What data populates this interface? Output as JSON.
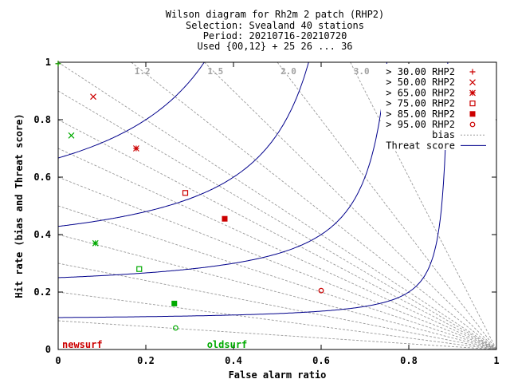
{
  "title_lines": [
    "Wilson diagram  for Rh2m 2 patch (RHP2)",
    "Selection: Svealand     40 stations",
    "Period: 20210716-20210720",
    "Used {00,12} + 25 26 ... 36"
  ],
  "chart_data": {
    "type": "scatter",
    "xlabel": "False alarm ratio",
    "ylabel": "Hit rate (bias and Threat score)",
    "xlim": [
      0,
      1
    ],
    "ylim": [
      0,
      1
    ],
    "x_ticks": [
      "0",
      "0.2",
      "0.4",
      "0.6",
      "0.8",
      "1"
    ],
    "y_ticks": [
      "0",
      "0.2",
      "0.4",
      "0.6",
      "0.8",
      "1"
    ],
    "bias_lines": [
      0.1,
      0.2,
      0.3,
      0.4,
      0.5,
      0.6,
      0.7,
      0.8,
      0.9,
      1.0,
      1.2,
      1.5,
      2.0,
      3.0
    ],
    "bias_labels": [
      "1.2",
      "1.5",
      "2.0",
      "3.0"
    ],
    "threat_score_lines": [
      0.1,
      0.2,
      0.3,
      0.4,
      0.5,
      0.6,
      0.7,
      0.8,
      0.9
    ],
    "legend": [
      {
        "label": "> 30.00 RHP2",
        "marker": "plus"
      },
      {
        "label": "> 50.00 RHP2",
        "marker": "cross"
      },
      {
        "label": "> 65.00 RHP2",
        "marker": "star"
      },
      {
        "label": "> 75.00 RHP2",
        "marker": "square-open"
      },
      {
        "label": "> 85.00 RHP2",
        "marker": "square-filled"
      },
      {
        "label": "> 95.00 RHP2",
        "marker": "circle-open"
      },
      {
        "label": "bias",
        "marker": "dotted-line"
      },
      {
        "label": "Threat score",
        "marker": "line"
      }
    ],
    "series": [
      {
        "name": "newsurf",
        "color": "#cc0000",
        "points": [
          {
            "threshold": "> 30.00 RHP2",
            "marker": "plus",
            "x": 0.0,
            "y": 0.995
          },
          {
            "threshold": "> 50.00 RHP2",
            "marker": "cross",
            "x": 0.08,
            "y": 0.88
          },
          {
            "threshold": "> 65.00 RHP2",
            "marker": "star",
            "x": 0.178,
            "y": 0.7
          },
          {
            "threshold": "> 75.00 RHP2",
            "marker": "square-open",
            "x": 0.29,
            "y": 0.545
          },
          {
            "threshold": "> 85.00 RHP2",
            "marker": "square-filled",
            "x": 0.38,
            "y": 0.455
          },
          {
            "threshold": "> 95.00 RHP2",
            "marker": "circle-open",
            "x": 0.6,
            "y": 0.205
          }
        ]
      },
      {
        "name": "oldsurf",
        "color": "#00aa00",
        "points": [
          {
            "threshold": "> 30.00 RHP2",
            "marker": "plus",
            "x": 0.0,
            "y": 0.995
          },
          {
            "threshold": "> 50.00 RHP2",
            "marker": "cross",
            "x": 0.03,
            "y": 0.745
          },
          {
            "threshold": "> 65.00 RHP2",
            "marker": "star",
            "x": 0.085,
            "y": 0.37
          },
          {
            "threshold": "> 75.00 RHP2",
            "marker": "square-open",
            "x": 0.185,
            "y": 0.28
          },
          {
            "threshold": "> 85.00 RHP2",
            "marker": "square-filled",
            "x": 0.265,
            "y": 0.16
          },
          {
            "threshold": "> 95.00 RHP2",
            "marker": "circle-open",
            "x": 0.268,
            "y": 0.075
          }
        ]
      }
    ]
  },
  "colors": {
    "threat_line": "#00008b",
    "bias_line": "#9a9a9a",
    "bias_label": "#a0a0a0",
    "legend_marker": "#cc0000"
  }
}
